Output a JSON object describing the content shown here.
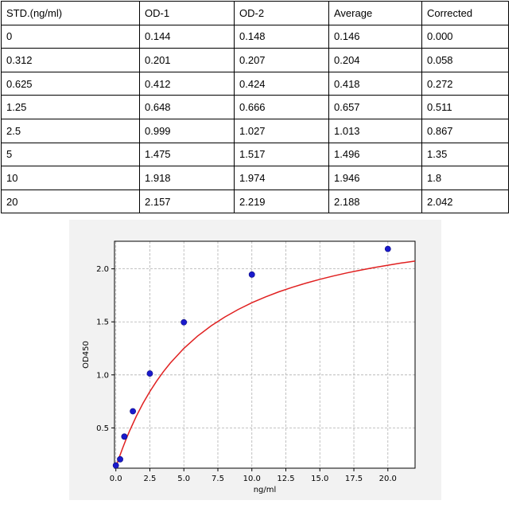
{
  "table": {
    "headers": [
      "STD.(ng/ml)",
      "OD-1",
      "OD-2",
      "Average",
      "Corrected"
    ],
    "rows": [
      [
        "0",
        "0.144",
        "0.148",
        "0.146",
        "0.000"
      ],
      [
        "0.312",
        "0.201",
        "0.207",
        "0.204",
        "0.058"
      ],
      [
        "0.625",
        "0.412",
        "0.424",
        "0.418",
        "0.272"
      ],
      [
        "1.25",
        "0.648",
        "0.666",
        "0.657",
        "0.511"
      ],
      [
        "2.5",
        "0.999",
        "1.027",
        "1.013",
        "0.867"
      ],
      [
        "5",
        "1.475",
        "1.517",
        "1.496",
        "1.35"
      ],
      [
        "10",
        "1.918",
        "1.974",
        "1.946",
        "1.8"
      ],
      [
        "20",
        "2.157",
        "2.219",
        "2.188",
        "2.042"
      ]
    ]
  },
  "chart_data": {
    "type": "scatter",
    "title": "",
    "xlabel": "ng/ml",
    "ylabel": "OD450",
    "xlim": [
      -0.1,
      22.0
    ],
    "ylim": [
      0.12,
      2.26
    ],
    "x_ticks": [
      0.0,
      2.5,
      5.0,
      7.5,
      10.0,
      12.5,
      15.0,
      17.5,
      20.0
    ],
    "x_tick_labels": [
      "0.0",
      "2.5",
      "5.0",
      "7.5",
      "10.0",
      "12.5",
      "15.0",
      "17.5",
      "20.0"
    ],
    "y_ticks": [
      0.5,
      1.0,
      1.5,
      2.0
    ],
    "y_tick_labels": [
      "0.5",
      "1.0",
      "1.5",
      "2.0"
    ],
    "grid": true,
    "points": {
      "x": [
        0,
        0.312,
        0.625,
        1.25,
        2.5,
        5,
        10,
        20
      ],
      "y": [
        0.146,
        0.204,
        0.418,
        0.657,
        1.013,
        1.496,
        1.946,
        2.188
      ]
    },
    "fit_curve": {
      "x": [
        0,
        0.25,
        0.5,
        0.75,
        1,
        1.5,
        2,
        2.5,
        3,
        3.5,
        4,
        5,
        6,
        7,
        8,
        9,
        10,
        11,
        12,
        13,
        14,
        15,
        16,
        17,
        18,
        19,
        20,
        21,
        22
      ],
      "y": [
        0.13,
        0.223,
        0.31,
        0.392,
        0.469,
        0.609,
        0.733,
        0.843,
        0.942,
        1.031,
        1.111,
        1.25,
        1.365,
        1.462,
        1.545,
        1.617,
        1.68,
        1.735,
        1.784,
        1.827,
        1.866,
        1.901,
        1.933,
        1.962,
        1.988,
        2.012,
        2.034,
        2.055,
        2.073
      ]
    },
    "colors": {
      "curve": "#e02020",
      "points": "#1a1acc",
      "grid": "#b0b0b0",
      "background": "#f2f2f2"
    }
  }
}
